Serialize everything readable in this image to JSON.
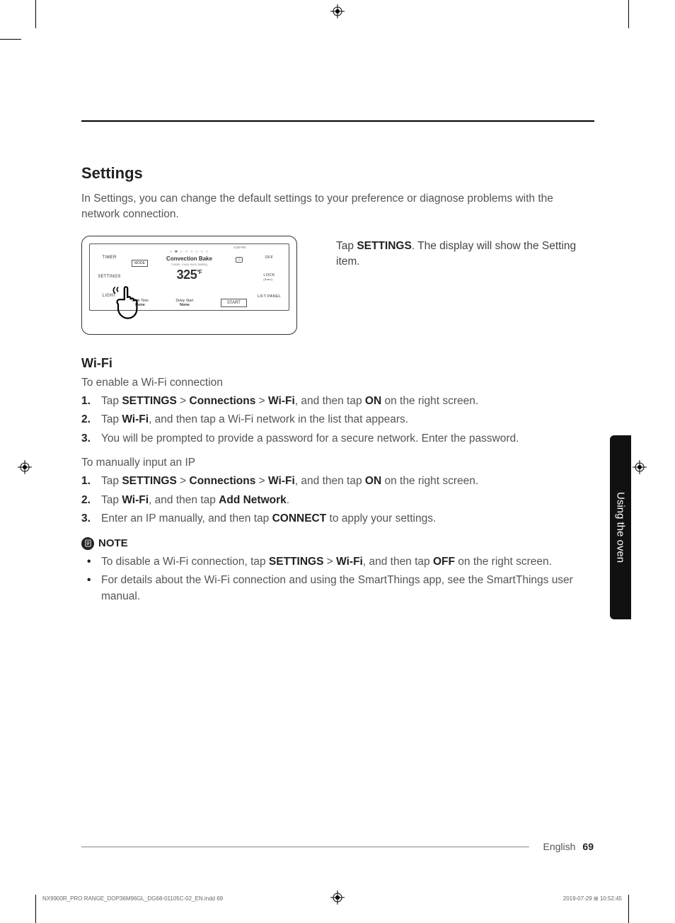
{
  "section": {
    "title": "Settings",
    "intro": "In Settings, you can change the default settings to your preference or diagnose problems with the network connection."
  },
  "figure": {
    "timer": "TIMER",
    "settings": "SETTINGS",
    "light": "LIGHT",
    "off": "OFF",
    "lock": "LOCK",
    "lock_sub": "(3sec)",
    "lift": "LIFT PANEL",
    "mode_box": "MODE",
    "dots": "○ ■ ○ ○ ○ ○ ○ ○",
    "conv_title": "Convection Bake",
    "conv_sub": "Faster, more even baking",
    "temp": "325",
    "temp_unit": "°F",
    "cook_time_lbl": "Cook Time",
    "cook_time_val": "None",
    "delay_lbl": "Delay Start",
    "delay_val": "None",
    "start": "START",
    "time": "4:35 PM",
    "wifi_badge": "⌂"
  },
  "caption_prefix": "Tap ",
  "caption_bold": "SETTINGS",
  "caption_suffix": ". The display will show the Setting item.",
  "wifi": {
    "heading": "Wi-Fi",
    "enable_lead": "To enable a Wi-Fi connection",
    "enable_steps": [
      {
        "num": "1.",
        "parts": [
          "Tap ",
          "SETTINGS",
          " > ",
          "Connections",
          " > ",
          "Wi-Fi",
          ", and then tap ",
          "ON",
          " on the right screen."
        ]
      },
      {
        "num": "2.",
        "parts": [
          "Tap ",
          "Wi-Fi",
          ", and then tap a Wi-Fi network in the list that appears."
        ]
      },
      {
        "num": "3.",
        "parts": [
          "You will be prompted to provide a password for a secure network. Enter the password."
        ]
      }
    ],
    "ip_lead": "To manually input an IP",
    "ip_steps": [
      {
        "num": "1.",
        "parts": [
          "Tap ",
          "SETTINGS",
          " > ",
          "Connections",
          " > ",
          "Wi-Fi",
          ", and then tap ",
          "ON",
          " on the right screen."
        ]
      },
      {
        "num": "2.",
        "parts": [
          "Tap ",
          "Wi-Fi",
          ", and then tap ",
          "Add Network",
          "."
        ]
      },
      {
        "num": "3.",
        "parts": [
          "Enter an IP manually, and then tap ",
          "CONNECT",
          " to apply your settings."
        ]
      }
    ]
  },
  "note": {
    "label": "NOTE",
    "items": [
      {
        "parts": [
          "To disable a Wi-Fi connection, tap ",
          "SETTINGS",
          " > ",
          "Wi-Fi",
          ", and then tap ",
          "OFF",
          " on the right screen."
        ]
      },
      {
        "parts": [
          "For details about the Wi-Fi connection and using the SmartThings app, see the SmartThings user manual."
        ]
      }
    ]
  },
  "sidetab": "Using the oven",
  "footer": {
    "lang": "English",
    "page": "69"
  },
  "print": {
    "file": "NX9900R_PRO RANGE_DOP36M96GL_DG68-01105C-02_EN.indd   69",
    "stamp": "2019-07-29   ⊞ 10:52:45"
  },
  "bold_tokens": [
    "SETTINGS",
    "Connections",
    "Wi-Fi",
    "ON",
    "Add Network",
    "CONNECT",
    "OFF"
  ]
}
